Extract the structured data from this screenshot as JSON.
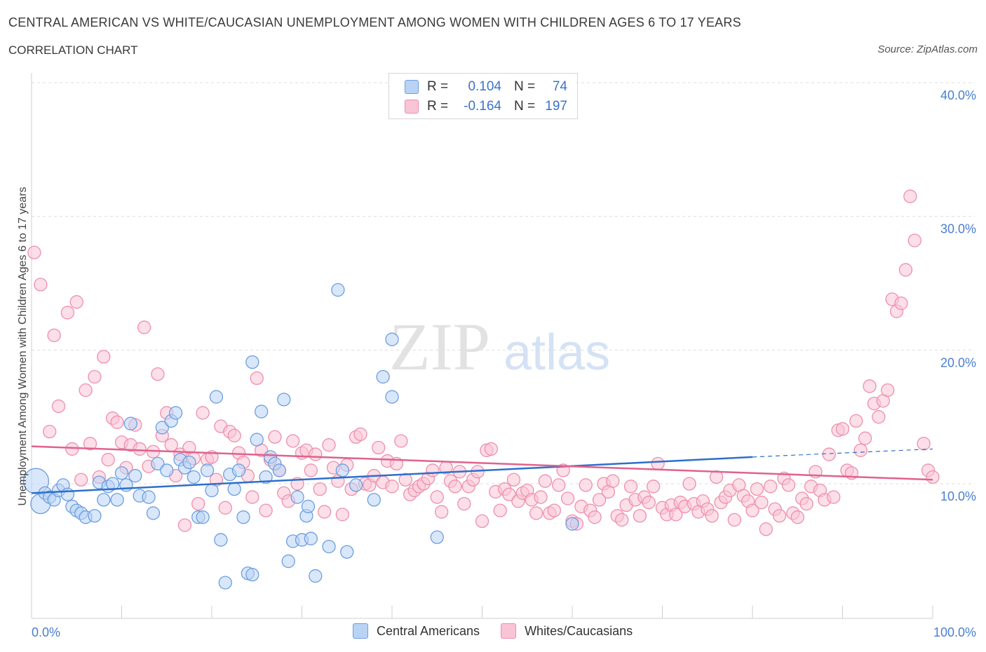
{
  "header": {
    "title": "CENTRAL AMERICAN VS WHITE/CAUCASIAN UNEMPLOYMENT AMONG WOMEN WITH CHILDREN AGES 6 TO 17 YEARS",
    "subtitle": "CORRELATION CHART",
    "source": "Source: ZipAtlas.com"
  },
  "legend": {
    "rows": [
      {
        "r_label": "R =",
        "r_value": "0.104",
        "n_label": "N =",
        "n_value": "74"
      },
      {
        "r_label": "R =",
        "r_value": "-0.164",
        "n_label": "N =",
        "n_value": "197"
      }
    ]
  },
  "watermark": {
    "zip": "ZIP",
    "atlas": "atlas"
  },
  "colors": {
    "blue_fill": "#b9d3f5",
    "blue_stroke": "#6d9ee0",
    "blue_line": "#2e6fcc",
    "pink_fill": "#f9c4d5",
    "pink_stroke": "#ee8fab",
    "pink_line": "#e0628e",
    "tick_text": "#4a7fd0",
    "grid": "#dddddd"
  },
  "chart_data": {
    "type": "scatter",
    "title": "CENTRAL AMERICAN VS WHITE/CAUCASIAN UNEMPLOYMENT AMONG WOMEN WITH CHILDREN AGES 6 TO 17 YEARS",
    "xlabel": "",
    "ylabel": "Unemployment Among Women with Children Ages 6 to 17 years",
    "xlim": [
      0,
      100
    ],
    "ylim": [
      0,
      40
    ],
    "x_tick_labels": [
      "0.0%",
      "100.0%"
    ],
    "y_ticks": [
      10,
      20,
      30,
      40
    ],
    "y_tick_labels": [
      "10.0%",
      "20.0%",
      "30.0%",
      "40.0%"
    ],
    "grid": true,
    "legend_position": "bottom",
    "series": [
      {
        "name": "Central Americans",
        "R": 0.104,
        "N": 74,
        "trend": {
          "x0": 0,
          "y0": 9.3,
          "x1": 80,
          "y1": 12.0,
          "dashed_to_x": 100,
          "dashed_to_y": 12.6
        },
        "points": [
          [
            0.5,
            10.2
          ],
          [
            1,
            8.5
          ],
          [
            1.5,
            9.3
          ],
          [
            2,
            9.0
          ],
          [
            2.5,
            8.8
          ],
          [
            3,
            9.5
          ],
          [
            3.5,
            9.9
          ],
          [
            4,
            9.2
          ],
          [
            4.5,
            8.3
          ],
          [
            5,
            8.0
          ],
          [
            5.5,
            7.8
          ],
          [
            6,
            7.5
          ],
          [
            7,
            7.6
          ],
          [
            7.5,
            10.1
          ],
          [
            8,
            8.8
          ],
          [
            8.5,
            9.8
          ],
          [
            9,
            10.0
          ],
          [
            9.5,
            8.8
          ],
          [
            10,
            10.8
          ],
          [
            10.5,
            9.9
          ],
          [
            11,
            14.5
          ],
          [
            11.5,
            10.6
          ],
          [
            12,
            9.1
          ],
          [
            13,
            9.0
          ],
          [
            13.5,
            7.8
          ],
          [
            14,
            11.5
          ],
          [
            14.5,
            14.2
          ],
          [
            15,
            11.0
          ],
          [
            15.5,
            14.7
          ],
          [
            16,
            15.3
          ],
          [
            16.5,
            11.8
          ],
          [
            17,
            11.2
          ],
          [
            17.5,
            11.6
          ],
          [
            18,
            10.5
          ],
          [
            18.5,
            7.5
          ],
          [
            19,
            7.5
          ],
          [
            19.5,
            11.0
          ],
          [
            20,
            9.5
          ],
          [
            20.5,
            16.5
          ],
          [
            21,
            5.8
          ],
          [
            21.5,
            2.6
          ],
          [
            22,
            10.7
          ],
          [
            22.5,
            9.6
          ],
          [
            23,
            11.0
          ],
          [
            23.5,
            7.5
          ],
          [
            24,
            3.3
          ],
          [
            24.5,
            3.2
          ],
          [
            24.5,
            19.1
          ],
          [
            25,
            13.3
          ],
          [
            25.5,
            15.4
          ],
          [
            26,
            10.5
          ],
          [
            26.5,
            12.0
          ],
          [
            27,
            11.5
          ],
          [
            27.5,
            11.0
          ],
          [
            28,
            16.3
          ],
          [
            28.5,
            4.2
          ],
          [
            29,
            5.7
          ],
          [
            29.5,
            9.0
          ],
          [
            30,
            5.8
          ],
          [
            30.5,
            7.6
          ],
          [
            30.7,
            8.3
          ],
          [
            31,
            5.9
          ],
          [
            31.5,
            3.1
          ],
          [
            33,
            5.3
          ],
          [
            34,
            24.5
          ],
          [
            34.5,
            11.0
          ],
          [
            35,
            4.9
          ],
          [
            36,
            9.9
          ],
          [
            38,
            8.8
          ],
          [
            39,
            18.0
          ],
          [
            40,
            20.8
          ],
          [
            40,
            16.5
          ],
          [
            45,
            6.0
          ],
          [
            60,
            7.0
          ]
        ]
      },
      {
        "name": "Whites/Caucasians",
        "R": -0.164,
        "N": 197,
        "trend": {
          "x0": 0,
          "y0": 12.8,
          "x1": 100,
          "y1": 10.3
        },
        "points": [
          [
            0.3,
            27.3
          ],
          [
            1,
            24.9
          ],
          [
            2,
            13.9
          ],
          [
            2.5,
            21.1
          ],
          [
            3,
            15.8
          ],
          [
            4,
            22.8
          ],
          [
            4.5,
            12.6
          ],
          [
            5,
            23.6
          ],
          [
            5.5,
            10.3
          ],
          [
            6,
            17.0
          ],
          [
            6.5,
            13.0
          ],
          [
            7,
            18.0
          ],
          [
            7.5,
            10.5
          ],
          [
            8,
            19.5
          ],
          [
            8.5,
            11.8
          ],
          [
            9,
            14.9
          ],
          [
            9.5,
            14.6
          ],
          [
            10,
            13.1
          ],
          [
            10.5,
            11.2
          ],
          [
            11,
            12.9
          ],
          [
            11.5,
            14.4
          ],
          [
            12,
            12.6
          ],
          [
            12.5,
            21.7
          ],
          [
            13,
            11.3
          ],
          [
            13.5,
            12.4
          ],
          [
            14,
            18.2
          ],
          [
            14.5,
            13.6
          ],
          [
            15,
            15.3
          ],
          [
            15.5,
            12.9
          ],
          [
            16,
            10.6
          ],
          [
            16.5,
            12.2
          ],
          [
            17,
            6.9
          ],
          [
            17.5,
            12.7
          ],
          [
            18,
            11.9
          ],
          [
            18.5,
            8.5
          ],
          [
            19,
            15.3
          ],
          [
            19.5,
            11.8
          ],
          [
            20,
            12.0
          ],
          [
            20.5,
            10.3
          ],
          [
            21,
            14.3
          ],
          [
            21.5,
            8.2
          ],
          [
            22,
            13.9
          ],
          [
            22.5,
            13.6
          ],
          [
            23,
            12.3
          ],
          [
            23.5,
            11.6
          ],
          [
            24,
            10.6
          ],
          [
            24.5,
            9.0
          ],
          [
            25,
            17.9
          ],
          [
            25.5,
            12.5
          ],
          [
            26,
            8.0
          ],
          [
            26.5,
            11.8
          ],
          [
            27,
            13.5
          ],
          [
            27.5,
            11.0
          ],
          [
            28,
            9.3
          ],
          [
            28.5,
            8.7
          ],
          [
            29,
            13.2
          ],
          [
            29.5,
            10.0
          ],
          [
            30,
            12.3
          ],
          [
            30.5,
            12.5
          ],
          [
            31,
            11.0
          ],
          [
            31.5,
            12.2
          ],
          [
            32,
            9.6
          ],
          [
            32.5,
            7.9
          ],
          [
            33,
            12.9
          ],
          [
            33.5,
            11.2
          ],
          [
            34,
            10.2
          ],
          [
            34.5,
            7.7
          ],
          [
            35,
            11.4
          ],
          [
            35.5,
            9.6
          ],
          [
            36,
            13.5
          ],
          [
            36.5,
            13.7
          ],
          [
            37,
            10.0
          ],
          [
            37.5,
            9.9
          ],
          [
            38,
            10.6
          ],
          [
            38.5,
            12.7
          ],
          [
            39,
            10.1
          ],
          [
            39.5,
            11.7
          ],
          [
            40,
            9.8
          ],
          [
            40.5,
            11.5
          ],
          [
            41,
            13.2
          ],
          [
            41.5,
            10.3
          ],
          [
            42,
            9.2
          ],
          [
            42.5,
            9.5
          ],
          [
            43,
            9.8
          ],
          [
            43.5,
            10.0
          ],
          [
            44,
            10.4
          ],
          [
            44.5,
            11.0
          ],
          [
            45,
            9.0
          ],
          [
            45.5,
            7.9
          ],
          [
            46,
            11.2
          ],
          [
            46.5,
            10.2
          ],
          [
            47,
            9.8
          ],
          [
            47.5,
            10.9
          ],
          [
            48,
            8.5
          ],
          [
            48.5,
            9.8
          ],
          [
            49,
            10.3
          ],
          [
            49.5,
            10.9
          ],
          [
            50,
            7.2
          ],
          [
            50.5,
            12.5
          ],
          [
            51,
            12.6
          ],
          [
            51.5,
            9.4
          ],
          [
            52,
            8.0
          ],
          [
            52.5,
            9.6
          ],
          [
            53,
            9.2
          ],
          [
            53.5,
            10.3
          ],
          [
            54,
            8.7
          ],
          [
            54.5,
            9.3
          ],
          [
            55,
            9.5
          ],
          [
            55.5,
            8.8
          ],
          [
            56,
            7.8
          ],
          [
            56.5,
            9.0
          ],
          [
            57,
            10.2
          ],
          [
            57.5,
            7.8
          ],
          [
            58,
            8.0
          ],
          [
            58.5,
            9.9
          ],
          [
            59,
            11.0
          ],
          [
            59.5,
            8.9
          ],
          [
            60,
            7.2
          ],
          [
            60.5,
            7.0
          ],
          [
            61,
            8.3
          ],
          [
            61.5,
            9.9
          ],
          [
            62,
            8.0
          ],
          [
            62.5,
            7.5
          ],
          [
            63,
            8.8
          ],
          [
            63.5,
            10.0
          ],
          [
            64,
            9.4
          ],
          [
            64.5,
            10.2
          ],
          [
            65,
            7.6
          ],
          [
            65.5,
            7.3
          ],
          [
            66,
            8.4
          ],
          [
            66.5,
            9.8
          ],
          [
            67,
            8.8
          ],
          [
            67.5,
            7.6
          ],
          [
            68,
            9.0
          ],
          [
            68.5,
            8.6
          ],
          [
            69,
            9.8
          ],
          [
            69.5,
            11.5
          ],
          [
            70,
            8.2
          ],
          [
            70.5,
            7.7
          ],
          [
            71,
            8.4
          ],
          [
            71.5,
            7.7
          ],
          [
            72,
            8.6
          ],
          [
            72.5,
            8.3
          ],
          [
            73,
            10.0
          ],
          [
            73.5,
            8.5
          ],
          [
            74,
            7.9
          ],
          [
            74.5,
            8.7
          ],
          [
            75,
            8.1
          ],
          [
            75.5,
            7.6
          ],
          [
            76,
            10.5
          ],
          [
            76.5,
            8.6
          ],
          [
            77,
            9.0
          ],
          [
            77.5,
            9.5
          ],
          [
            78,
            7.3
          ],
          [
            78.5,
            9.9
          ],
          [
            79,
            9.1
          ],
          [
            79.5,
            8.7
          ],
          [
            80,
            8.0
          ],
          [
            80.5,
            9.6
          ],
          [
            81,
            8.6
          ],
          [
            81.5,
            6.6
          ],
          [
            82,
            9.8
          ],
          [
            82.5,
            8.1
          ],
          [
            83,
            7.6
          ],
          [
            83.5,
            10.4
          ],
          [
            84,
            9.9
          ],
          [
            84.5,
            7.8
          ],
          [
            85,
            7.5
          ],
          [
            85.5,
            8.9
          ],
          [
            86,
            8.5
          ],
          [
            86.5,
            9.8
          ],
          [
            87,
            10.9
          ],
          [
            87.5,
            9.5
          ],
          [
            88,
            8.8
          ],
          [
            88.5,
            12.2
          ],
          [
            89,
            9.0
          ],
          [
            89.5,
            14.0
          ],
          [
            90,
            14.1
          ],
          [
            90.5,
            11.0
          ],
          [
            91,
            10.8
          ],
          [
            91.5,
            14.7
          ],
          [
            92,
            12.5
          ],
          [
            92.5,
            13.4
          ],
          [
            93,
            17.3
          ],
          [
            93.5,
            16.0
          ],
          [
            94,
            15.0
          ],
          [
            94.5,
            16.2
          ],
          [
            95,
            17.0
          ],
          [
            95.5,
            23.8
          ],
          [
            96,
            22.9
          ],
          [
            96.5,
            23.5
          ],
          [
            97,
            26.0
          ],
          [
            97.5,
            31.5
          ],
          [
            98,
            28.2
          ],
          [
            99,
            13.0
          ],
          [
            99.5,
            11.0
          ],
          [
            100,
            10.5
          ]
        ]
      }
    ]
  },
  "bottom_legend": {
    "items": [
      {
        "label": "Central Americans"
      },
      {
        "label": "Whites/Caucasians"
      }
    ]
  }
}
